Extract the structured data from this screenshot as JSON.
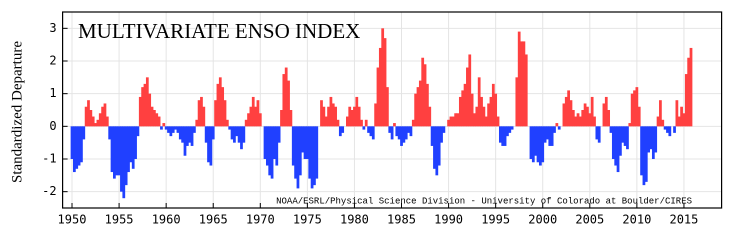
{
  "chart_data": {
    "type": "bar",
    "title": "MULTIVARIATE ENSO INDEX",
    "ylabel": "Standardized Departure",
    "annotation": "NOAA/ESRL/Physical Science Division - University of Colorado at Boulder/CIRES",
    "positive_color": "#ff4040",
    "negative_color": "#2040ff",
    "grid": true,
    "xlim": [
      1949,
      2019
    ],
    "ylim": [
      -2.5,
      3.5
    ],
    "xticks": [
      1950,
      1955,
      1960,
      1965,
      1970,
      1975,
      1980,
      1985,
      1990,
      1995,
      2000,
      2005,
      2010,
      2015
    ],
    "yticks": [
      -2,
      -1,
      0,
      1,
      2,
      3
    ],
    "x": [
      1950,
      1950.25,
      1950.5,
      1950.75,
      1951,
      1951.25,
      1951.5,
      1951.75,
      1952,
      1952.25,
      1952.5,
      1952.75,
      1953,
      1953.25,
      1953.5,
      1953.75,
      1954,
      1954.25,
      1954.5,
      1954.75,
      1955,
      1955.25,
      1955.5,
      1955.75,
      1956,
      1956.25,
      1956.5,
      1956.75,
      1957,
      1957.25,
      1957.5,
      1957.75,
      1958,
      1958.25,
      1958.5,
      1958.75,
      1959,
      1959.25,
      1959.5,
      1959.75,
      1960,
      1960.25,
      1960.5,
      1960.75,
      1961,
      1961.25,
      1961.5,
      1961.75,
      1962,
      1962.25,
      1962.5,
      1962.75,
      1963,
      1963.25,
      1963.5,
      1963.75,
      1964,
      1964.25,
      1964.5,
      1964.75,
      1965,
      1965.25,
      1965.5,
      1965.75,
      1966,
      1966.25,
      1966.5,
      1966.75,
      1967,
      1967.25,
      1967.5,
      1967.75,
      1968,
      1968.25,
      1968.5,
      1968.75,
      1969,
      1969.25,
      1969.5,
      1969.75,
      1970,
      1970.25,
      1970.5,
      1970.75,
      1971,
      1971.25,
      1971.5,
      1971.75,
      1972,
      1972.25,
      1972.5,
      1972.75,
      1973,
      1973.25,
      1973.5,
      1973.75,
      1974,
      1974.25,
      1974.5,
      1974.75,
      1975,
      1975.25,
      1975.5,
      1975.75,
      1976,
      1976.25,
      1976.5,
      1976.75,
      1977,
      1977.25,
      1977.5,
      1977.75,
      1978,
      1978.25,
      1978.5,
      1978.75,
      1979,
      1979.25,
      1979.5,
      1979.75,
      1980,
      1980.25,
      1980.5,
      1980.75,
      1981,
      1981.25,
      1981.5,
      1981.75,
      1982,
      1982.25,
      1982.5,
      1982.75,
      1983,
      1983.25,
      1983.5,
      1983.75,
      1984,
      1984.25,
      1984.5,
      1984.75,
      1985,
      1985.25,
      1985.5,
      1985.75,
      1986,
      1986.25,
      1986.5,
      1986.75,
      1987,
      1987.25,
      1987.5,
      1987.75,
      1988,
      1988.25,
      1988.5,
      1988.75,
      1989,
      1989.25,
      1989.5,
      1989.75,
      1990,
      1990.25,
      1990.5,
      1990.75,
      1991,
      1991.25,
      1991.5,
      1991.75,
      1992,
      1992.25,
      1992.5,
      1992.75,
      1993,
      1993.25,
      1993.5,
      1993.75,
      1994,
      1994.25,
      1994.5,
      1994.75,
      1995,
      1995.25,
      1995.5,
      1995.75,
      1996,
      1996.25,
      1996.5,
      1996.75,
      1997,
      1997.25,
      1997.5,
      1997.75,
      1998,
      1998.25,
      1998.5,
      1998.75,
      1999,
      1999.25,
      1999.5,
      1999.75,
      2000,
      2000.25,
      2000.5,
      2000.75,
      2001,
      2001.25,
      2001.5,
      2001.75,
      2002,
      2002.25,
      2002.5,
      2002.75,
      2003,
      2003.25,
      2003.5,
      2003.75,
      2004,
      2004.25,
      2004.5,
      2004.75,
      2005,
      2005.25,
      2005.5,
      2005.75,
      2006,
      2006.25,
      2006.5,
      2006.75,
      2007,
      2007.25,
      2007.5,
      2007.75,
      2008,
      2008.25,
      2008.5,
      2008.75,
      2009,
      2009.25,
      2009.5,
      2009.75,
      2010,
      2010.25,
      2010.5,
      2010.75,
      2011,
      2011.25,
      2011.5,
      2011.75,
      2012,
      2012.25,
      2012.5,
      2012.75,
      2013,
      2013.25,
      2013.5,
      2013.75,
      2014,
      2014.25,
      2014.5,
      2014.75,
      2015,
      2015.25,
      2015.5,
      2015.75
    ],
    "values": [
      -1.0,
      -1.4,
      -1.3,
      -1.2,
      -1.1,
      -0.4,
      0.6,
      0.8,
      0.5,
      0.3,
      0.1,
      0.2,
      0.4,
      0.6,
      0.7,
      0.3,
      -0.4,
      -1.4,
      -1.6,
      -1.5,
      -1.5,
      -2.0,
      -2.2,
      -1.8,
      -1.4,
      -1.1,
      -1.3,
      -1.0,
      -0.3,
      0.9,
      1.2,
      1.3,
      1.5,
      1.0,
      0.6,
      0.5,
      0.4,
      0.3,
      -0.1,
      0.1,
      -0.1,
      -0.2,
      -0.3,
      -0.2,
      -0.1,
      -0.2,
      -0.4,
      -0.5,
      -0.9,
      -0.6,
      -0.5,
      -0.6,
      -0.2,
      0.2,
      0.8,
      0.9,
      0.6,
      -0.5,
      -1.1,
      -1.2,
      -0.4,
      0.8,
      1.3,
      1.5,
      1.2,
      0.8,
      0.2,
      -0.1,
      -0.4,
      -0.5,
      -0.3,
      -0.5,
      -0.7,
      -0.5,
      0.2,
      0.4,
      0.6,
      0.9,
      0.6,
      0.8,
      0.4,
      0.0,
      -1.0,
      -1.2,
      -1.5,
      -1.6,
      -1.0,
      -1.2,
      -0.5,
      0.5,
      1.6,
      1.8,
      1.4,
      0.5,
      -1.2,
      -1.6,
      -1.9,
      -1.5,
      -0.8,
      -1.0,
      -1.0,
      -1.6,
      -1.9,
      -1.8,
      -1.6,
      0.0,
      0.8,
      0.6,
      0.3,
      0.6,
      0.9,
      0.7,
      0.6,
      0.2,
      -0.3,
      -0.2,
      0.0,
      0.3,
      0.6,
      0.5,
      0.6,
      0.9,
      0.6,
      0.2,
      -0.1,
      0.2,
      -0.2,
      -0.3,
      -0.4,
      0.7,
      1.8,
      2.4,
      3.0,
      2.7,
      1.2,
      -0.2,
      -0.4,
      0.1,
      -0.3,
      -0.4,
      -0.6,
      -0.5,
      -0.4,
      -0.2,
      -0.3,
      0.2,
      1.0,
      1.2,
      1.4,
      2.1,
      1.9,
      1.3,
      0.6,
      -0.6,
      -1.3,
      -1.5,
      -1.2,
      -0.5,
      -0.2,
      0.0,
      0.2,
      0.3,
      0.3,
      0.4,
      0.4,
      0.9,
      1.1,
      1.3,
      1.8,
      2.2,
      1.0,
      0.4,
      0.6,
      1.5,
      0.9,
      0.6,
      0.3,
      0.7,
      0.9,
      1.3,
      1.0,
      0.3,
      -0.5,
      -0.6,
      -0.6,
      -0.3,
      -0.2,
      -0.1,
      0.0,
      1.5,
      2.9,
      2.6,
      2.6,
      2.2,
      0.0,
      -1.0,
      -1.1,
      -0.9,
      -1.1,
      -1.2,
      -1.1,
      -0.5,
      -0.4,
      -0.6,
      -0.6,
      -0.2,
      0.1,
      -0.1,
      0.0,
      0.7,
      0.9,
      1.1,
      0.8,
      0.5,
      0.3,
      0.4,
      0.3,
      0.5,
      0.7,
      0.6,
      0.4,
      0.9,
      0.3,
      -0.4,
      -0.5,
      0.0,
      0.7,
      0.9,
      0.5,
      -0.2,
      -1.0,
      -1.2,
      -1.4,
      -0.9,
      -0.5,
      -0.6,
      -0.7,
      0.1,
      1.0,
      1.1,
      1.2,
      0.6,
      -1.5,
      -1.8,
      -1.7,
      -0.8,
      -0.7,
      -1.0,
      -0.8,
      0.3,
      0.8,
      0.2,
      -0.1,
      -0.2,
      -0.3,
      0.0,
      -0.2,
      0.8,
      0.3,
      0.6,
      0.4,
      1.6,
      2.1,
      2.4
    ]
  }
}
